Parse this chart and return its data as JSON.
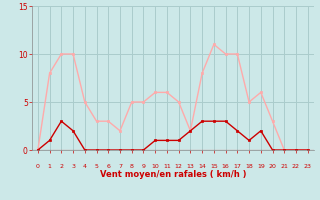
{
  "x": [
    0,
    1,
    2,
    3,
    4,
    5,
    6,
    7,
    8,
    9,
    10,
    11,
    12,
    13,
    14,
    15,
    16,
    17,
    18,
    19,
    20,
    21,
    22,
    23
  ],
  "wind_avg": [
    0,
    1,
    3,
    2,
    0,
    0,
    0,
    0,
    0,
    0,
    1,
    1,
    1,
    2,
    3,
    3,
    3,
    2,
    1,
    2,
    0,
    0,
    0,
    0
  ],
  "wind_gust": [
    0,
    8,
    10,
    10,
    5,
    3,
    3,
    2,
    5,
    5,
    6,
    6,
    5,
    2,
    8,
    11,
    10,
    10,
    5,
    6,
    3,
    0,
    0,
    0
  ],
  "avg_color": "#cc0000",
  "gust_color": "#ffaaaa",
  "bg_color": "#cce8e8",
  "grid_color": "#aacccc",
  "xlabel": "Vent moyen/en rafales ( km/h )",
  "xlabel_color": "#cc0000",
  "tick_color": "#cc0000",
  "ylim": [
    0,
    15
  ],
  "yticks": [
    0,
    5,
    10,
    15
  ],
  "xticks": [
    0,
    1,
    2,
    3,
    4,
    5,
    6,
    7,
    8,
    9,
    10,
    11,
    12,
    13,
    14,
    15,
    16,
    17,
    18,
    19,
    20,
    21,
    22,
    23
  ],
  "arrows": [
    "↙",
    "↗",
    "↑",
    "↑",
    "→",
    "↑",
    "→",
    "↑",
    "↗",
    "→",
    "→",
    "↓",
    "↙",
    "↖",
    "→",
    "↑",
    "↑",
    "↖",
    "↖",
    "→",
    "→",
    "→",
    "→",
    "→"
  ]
}
